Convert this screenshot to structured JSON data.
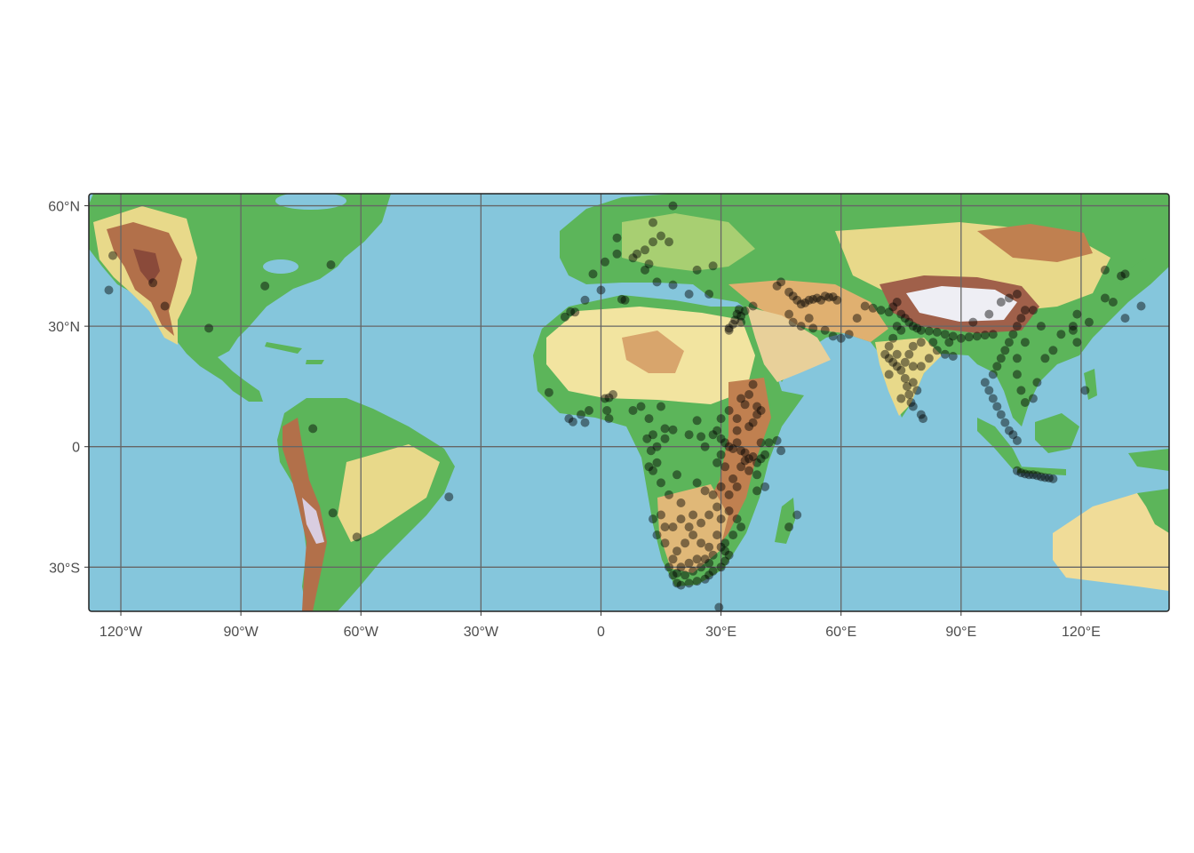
{
  "map": {
    "type": "scatter",
    "title": "",
    "xlabel": "",
    "ylabel": "",
    "projection": "equirectangular",
    "xlim": [
      -128,
      142
    ],
    "ylim": [
      -41,
      63
    ],
    "grid": true,
    "basemap": "elevation relief (green lowlands, yellow/brown highlands, white high peaks) over blue ocean",
    "x_ticks": [
      {
        "value": -120,
        "label": "120°W"
      },
      {
        "value": -90,
        "label": "90°W"
      },
      {
        "value": -60,
        "label": "60°W"
      },
      {
        "value": -30,
        "label": "30°W"
      },
      {
        "value": 0,
        "label": "0"
      },
      {
        "value": 30,
        "label": "30°E"
      },
      {
        "value": 60,
        "label": "60°E"
      },
      {
        "value": 90,
        "label": "90°E"
      },
      {
        "value": 120,
        "label": "120°E"
      }
    ],
    "y_ticks": [
      {
        "value": 60,
        "label": "60°N"
      },
      {
        "value": 30,
        "label": "30°N"
      },
      {
        "value": 0,
        "label": "0"
      },
      {
        "value": -30,
        "label": "30°S"
      }
    ],
    "colors": {
      "ocean": "#85c6dc",
      "lowland": "#5cb55a",
      "upland": "#e8d98a",
      "highland": "#c08050",
      "mountain": "#8a4a3a",
      "peak": "#eeeef4",
      "grid": "#666666",
      "border": "#222222",
      "point": "#000000"
    },
    "point_opacity": 0.45,
    "points": [
      [
        -122,
        47.6
      ],
      [
        -123,
        39
      ],
      [
        -112,
        40.8
      ],
      [
        -109,
        35
      ],
      [
        -98,
        29.5
      ],
      [
        -84,
        40
      ],
      [
        -67.5,
        45.3
      ],
      [
        -72,
        4.5
      ],
      [
        -67,
        -16.5
      ],
      [
        -61,
        -22.5
      ],
      [
        -38,
        -12.5
      ],
      [
        -6.5,
        33.5
      ],
      [
        -7.6,
        33.6
      ],
      [
        -9,
        32.3
      ],
      [
        -4,
        36.5
      ],
      [
        6,
        36.5
      ],
      [
        5.2,
        36.7
      ],
      [
        0,
        39
      ],
      [
        -2,
        43
      ],
      [
        1,
        46
      ],
      [
        4,
        48
      ],
      [
        4,
        52
      ],
      [
        8,
        47
      ],
      [
        9,
        48
      ],
      [
        11,
        49
      ],
      [
        13,
        51
      ],
      [
        15,
        52.5
      ],
      [
        17,
        51
      ],
      [
        13,
        55.8
      ],
      [
        18,
        60
      ],
      [
        12,
        45.5
      ],
      [
        11,
        44
      ],
      [
        14,
        41
      ],
      [
        18,
        40.3
      ],
      [
        22,
        38
      ],
      [
        27,
        38
      ],
      [
        24,
        44
      ],
      [
        28,
        45
      ],
      [
        35,
        32.5
      ],
      [
        35,
        31
      ],
      [
        36,
        33.8
      ],
      [
        38,
        35
      ],
      [
        32,
        29.5
      ],
      [
        -13,
        13.5
      ],
      [
        -8,
        7
      ],
      [
        -7,
        6.2
      ],
      [
        -5,
        8
      ],
      [
        -4,
        6
      ],
      [
        -3,
        9
      ],
      [
        1,
        12
      ],
      [
        2,
        12.2
      ],
      [
        3,
        13
      ],
      [
        1.5,
        9
      ],
      [
        2,
        7
      ],
      [
        8,
        9
      ],
      [
        10,
        10
      ],
      [
        12,
        7
      ],
      [
        15,
        10
      ],
      [
        16,
        4.5
      ],
      [
        13,
        3
      ],
      [
        11.5,
        2
      ],
      [
        12.5,
        -1
      ],
      [
        14,
        0
      ],
      [
        16,
        2
      ],
      [
        18,
        4.2
      ],
      [
        22,
        3
      ],
      [
        24,
        6.5
      ],
      [
        25,
        2.5
      ],
      [
        26,
        0
      ],
      [
        28,
        3
      ],
      [
        30,
        2
      ],
      [
        31,
        1
      ],
      [
        32,
        0
      ],
      [
        33,
        -0.5
      ],
      [
        34,
        1
      ],
      [
        35,
        -1
      ],
      [
        36,
        -1.5
      ],
      [
        37,
        -3
      ],
      [
        38,
        -2.5
      ],
      [
        39,
        -4
      ],
      [
        36,
        -3.5
      ],
      [
        35,
        -5
      ],
      [
        37,
        -6
      ],
      [
        39,
        -7
      ],
      [
        33,
        -8
      ],
      [
        34,
        -10
      ],
      [
        32,
        -12
      ],
      [
        30,
        -10
      ],
      [
        28,
        -12
      ],
      [
        29,
        -15
      ],
      [
        27,
        -17
      ],
      [
        30,
        -18
      ],
      [
        32,
        -16
      ],
      [
        34,
        -18
      ],
      [
        35,
        -20
      ],
      [
        33,
        -22
      ],
      [
        31,
        -24
      ],
      [
        29,
        -22
      ],
      [
        27,
        -25
      ],
      [
        25,
        -24
      ],
      [
        23,
        -22
      ],
      [
        21,
        -24
      ],
      [
        19,
        -26
      ],
      [
        18,
        -28
      ],
      [
        17,
        -30
      ],
      [
        18,
        -32
      ],
      [
        19,
        -34
      ],
      [
        20,
        -34.5
      ],
      [
        22,
        -34
      ],
      [
        24,
        -33.5
      ],
      [
        26,
        -33
      ],
      [
        27,
        -32
      ],
      [
        28,
        -31
      ],
      [
        30,
        -30
      ],
      [
        31,
        -28.5
      ],
      [
        32,
        -27
      ],
      [
        31,
        -26
      ],
      [
        30,
        -25
      ],
      [
        28,
        -27
      ],
      [
        26,
        -28
      ],
      [
        24,
        -28
      ],
      [
        22,
        -29
      ],
      [
        20,
        -30
      ],
      [
        19,
        -31.5
      ],
      [
        21,
        -32
      ],
      [
        23,
        -31
      ],
      [
        25,
        -30
      ],
      [
        27,
        -29
      ],
      [
        16,
        -20
      ],
      [
        15,
        -17
      ],
      [
        14,
        -22
      ],
      [
        13,
        -18
      ],
      [
        16,
        -24
      ],
      [
        18,
        -20
      ],
      [
        20,
        -18
      ],
      [
        22,
        -20
      ],
      [
        23,
        -17
      ],
      [
        25,
        -19
      ],
      [
        20,
        -14
      ],
      [
        17,
        -12
      ],
      [
        15,
        -9
      ],
      [
        13,
        -6
      ],
      [
        12,
        -5
      ],
      [
        14,
        -4
      ],
      [
        19,
        -7
      ],
      [
        24,
        -9
      ],
      [
        26,
        -11
      ],
      [
        29,
        -4
      ],
      [
        30,
        -2
      ],
      [
        31,
        -5
      ],
      [
        37,
        5
      ],
      [
        38,
        6
      ],
      [
        39,
        8
      ],
      [
        40,
        9
      ],
      [
        39,
        10
      ],
      [
        36,
        10.5
      ],
      [
        35,
        12
      ],
      [
        34,
        7
      ],
      [
        32,
        9
      ],
      [
        30,
        7
      ],
      [
        29,
        4
      ],
      [
        34,
        4
      ],
      [
        37,
        13
      ],
      [
        38,
        15.5
      ],
      [
        40,
        1
      ],
      [
        40,
        -3
      ],
      [
        41,
        -2
      ],
      [
        42,
        1
      ],
      [
        44,
        1.5
      ],
      [
        45,
        -1
      ],
      [
        41,
        -10
      ],
      [
        39,
        -11
      ],
      [
        49,
        -17
      ],
      [
        47,
        -20
      ],
      [
        32,
        29
      ],
      [
        33,
        30.5
      ],
      [
        33.5,
        31.5
      ],
      [
        34,
        33
      ],
      [
        34.5,
        34.2
      ],
      [
        44,
        40
      ],
      [
        45,
        41
      ],
      [
        47,
        38.5
      ],
      [
        48,
        37.5
      ],
      [
        49,
        36.5
      ],
      [
        50,
        35.5
      ],
      [
        51,
        35.8
      ],
      [
        52,
        36.5
      ],
      [
        53,
        36.7
      ],
      [
        54,
        37
      ],
      [
        55,
        36.5
      ],
      [
        56,
        37.5
      ],
      [
        57,
        37.2
      ],
      [
        58,
        37.3
      ],
      [
        59,
        36.5
      ],
      [
        47,
        33
      ],
      [
        48,
        31
      ],
      [
        50,
        30
      ],
      [
        52,
        32
      ],
      [
        53,
        29.5
      ],
      [
        56,
        29
      ],
      [
        58,
        27.5
      ],
      [
        60,
        27
      ],
      [
        62,
        28
      ],
      [
        64,
        32
      ],
      [
        66,
        35
      ],
      [
        68,
        34.5
      ],
      [
        70,
        34
      ],
      [
        72,
        33.5
      ],
      [
        73,
        34.8
      ],
      [
        74,
        36
      ],
      [
        75,
        33
      ],
      [
        76,
        32
      ],
      [
        77,
        31
      ],
      [
        78,
        30
      ],
      [
        79,
        29.5
      ],
      [
        80,
        29
      ],
      [
        82,
        28.8
      ],
      [
        84,
        28.5
      ],
      [
        86,
        28
      ],
      [
        88,
        27.5
      ],
      [
        90,
        27
      ],
      [
        92,
        27.3
      ],
      [
        94,
        27.5
      ],
      [
        96,
        27.8
      ],
      [
        98,
        28
      ],
      [
        74,
        30
      ],
      [
        75,
        29
      ],
      [
        73,
        27
      ],
      [
        72,
        25
      ],
      [
        71,
        23
      ],
      [
        72,
        22
      ],
      [
        73,
        21
      ],
      [
        74,
        20
      ],
      [
        75,
        19
      ],
      [
        76,
        17
      ],
      [
        76.5,
        15
      ],
      [
        77,
        13
      ],
      [
        77.5,
        11
      ],
      [
        78,
        10
      ],
      [
        80,
        8
      ],
      [
        80.5,
        7
      ],
      [
        79,
        14
      ],
      [
        78,
        16
      ],
      [
        80,
        20
      ],
      [
        82,
        22
      ],
      [
        84,
        24
      ],
      [
        86,
        23
      ],
      [
        88,
        22.5
      ],
      [
        77,
        23
      ],
      [
        78,
        25
      ],
      [
        80,
        26
      ],
      [
        76,
        21
      ],
      [
        74,
        23
      ],
      [
        72,
        18
      ],
      [
        75,
        12
      ],
      [
        78,
        20
      ],
      [
        83,
        26
      ],
      [
        87,
        26
      ],
      [
        96,
        16
      ],
      [
        97,
        14
      ],
      [
        98,
        12
      ],
      [
        99,
        10
      ],
      [
        100,
        8
      ],
      [
        101,
        6
      ],
      [
        102,
        4
      ],
      [
        103,
        3
      ],
      [
        104,
        1.5
      ],
      [
        98,
        18
      ],
      [
        99,
        20
      ],
      [
        100,
        22
      ],
      [
        101,
        24
      ],
      [
        102,
        26
      ],
      [
        103,
        28
      ],
      [
        104,
        30
      ],
      [
        105,
        32
      ],
      [
        106,
        34
      ],
      [
        108,
        34
      ],
      [
        110,
        30
      ],
      [
        106,
        26
      ],
      [
        104,
        22
      ],
      [
        104,
        18
      ],
      [
        105,
        14
      ],
      [
        106,
        11
      ],
      [
        108,
        12
      ],
      [
        109,
        16
      ],
      [
        111,
        22
      ],
      [
        113,
        24
      ],
      [
        115,
        28
      ],
      [
        118,
        30
      ],
      [
        119,
        33
      ],
      [
        104,
        38
      ],
      [
        102,
        37
      ],
      [
        100,
        36
      ],
      [
        97,
        33
      ],
      [
        93,
        31
      ],
      [
        119,
        26
      ],
      [
        118,
        29
      ],
      [
        121,
        14
      ],
      [
        122,
        31
      ],
      [
        126,
        37
      ],
      [
        128,
        36
      ],
      [
        131,
        32
      ],
      [
        135,
        35
      ],
      [
        130,
        42.5
      ],
      [
        131,
        43
      ],
      [
        126,
        44
      ],
      [
        104,
        -6
      ],
      [
        105,
        -6.5
      ],
      [
        106,
        -6.8
      ],
      [
        107,
        -7
      ],
      [
        108,
        -7
      ],
      [
        109,
        -7.2
      ],
      [
        110,
        -7.5
      ],
      [
        111,
        -7.7
      ],
      [
        112,
        -7.8
      ],
      [
        113,
        -8
      ],
      [
        29.5,
        -40
      ]
    ]
  }
}
